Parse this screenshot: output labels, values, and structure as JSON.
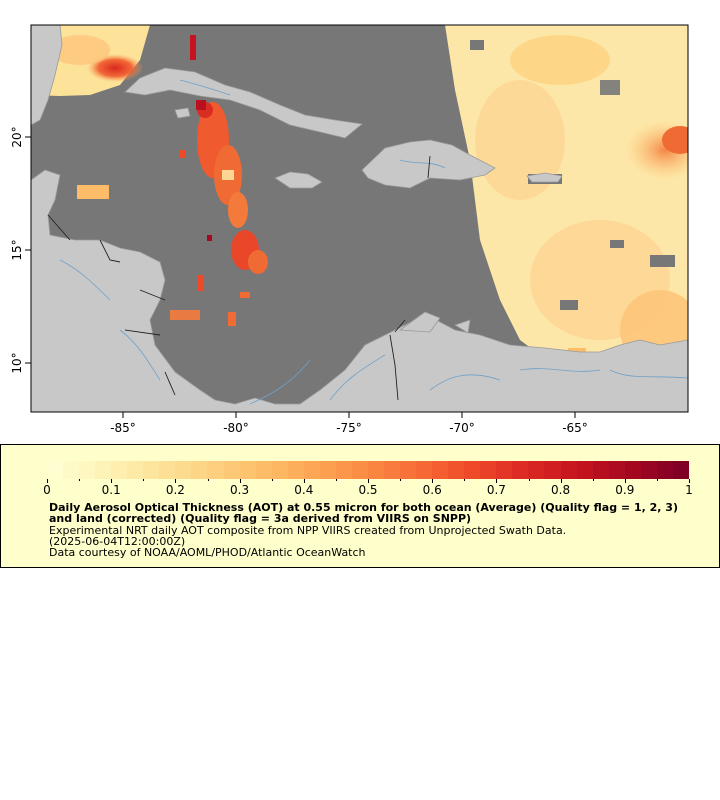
{
  "map": {
    "lon_ticks": [
      "-85°",
      "-80°",
      "-75°",
      "-70°",
      "-65°"
    ],
    "lat_ticks": [
      "20°",
      "15°",
      "10°"
    ],
    "extent": {
      "lon": [
        -89.1,
        -60.0
      ],
      "lat": [
        7.9,
        24.9
      ]
    },
    "colors": {
      "ocean_nodata": "#777777",
      "land": "#c8c8c8",
      "coast_border": "#9a9a9a",
      "rivers": "#6fa0c8",
      "country_borders": "#222222"
    }
  },
  "legend": {
    "colormap": [
      "#fefed0",
      "#fef2b4",
      "#fde39a",
      "#fdd180",
      "#fdbd68",
      "#fca553",
      "#fb8a43",
      "#f76a35",
      "#ee4a2a",
      "#dd2a23",
      "#c5141f",
      "#a6081f",
      "#800026"
    ],
    "tick_labels": [
      "0",
      "0.1",
      "0.2",
      "0.3",
      "0.4",
      "0.5",
      "0.6",
      "0.7",
      "0.8",
      "0.9",
      "1"
    ],
    "title": "Daily Aerosol Optical Thickness (AOT) at 0.55 micron for both ocean (Average) (Quality flag = 1, 2, 3) and land (corrected) (Quality flag = 3a derived from VIIRS on SNPP)",
    "description": "Experimental NRT daily AOT composite from NPP VIIRS created from Unprojected Swath Data.",
    "time": "(2025-06-04T12:00:00Z)",
    "credit": "Data courtesy of NOAA/AOML/PHOD/Atlantic OceanWatch"
  }
}
